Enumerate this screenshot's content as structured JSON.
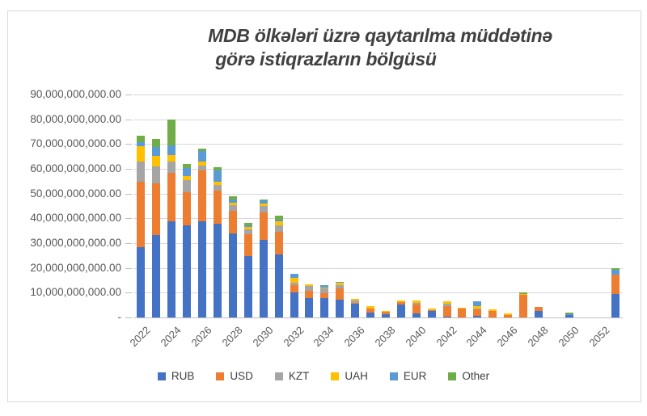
{
  "title": {
    "line1": "MDB ölkələri üzrə qaytarılma müddətinə",
    "line2": "görə istiqrazların bölgüsü"
  },
  "chart_data": {
    "type": "bar",
    "stacked": true,
    "title": "MDB ölkələri üzrə qaytarılma müddətinə görə istiqrazların bölgüsü",
    "unit_note": "y values shown in absolute amounts; series values below are billions (×1,000,000,000)",
    "categories": [
      "2022",
      "2023",
      "2024",
      "2025",
      "2026",
      "2027",
      "2028",
      "2029",
      "2030",
      "2031",
      "2032",
      "2033",
      "2034",
      "2035",
      "2036",
      "2037",
      "2038",
      "2039",
      "2040",
      "2041",
      "2042",
      "2043",
      "2044",
      "2045",
      "2046",
      "2047",
      "2048",
      "2049",
      "2050",
      "2051",
      "2052",
      "2053"
    ],
    "x_axis_tick_labels": [
      "2022",
      "2024",
      "2026",
      "2028",
      "2030",
      "2032",
      "2034",
      "2036",
      "2038",
      "2040",
      "2042",
      "2044",
      "2046",
      "2048",
      "2050",
      "2052"
    ],
    "series": [
      {
        "name": "RUB",
        "color": "#4472C4",
        "values_billions": [
          28.5,
          33.2,
          38.9,
          37.2,
          38.8,
          37.9,
          34.0,
          24.9,
          31.3,
          25.4,
          10.1,
          7.8,
          7.9,
          7.2,
          5.4,
          2.1,
          1.3,
          5.3,
          1.7,
          2.8,
          0.3,
          0,
          0.8,
          0,
          0,
          0,
          2.6,
          0,
          0.9,
          0,
          0,
          9.3
        ]
      },
      {
        "name": "USD",
        "color": "#ED7D31",
        "values_billions": [
          26.2,
          20.8,
          19.6,
          13.4,
          20.7,
          13.2,
          9.1,
          8.8,
          11.2,
          9.1,
          2.8,
          3.1,
          1.9,
          4.7,
          0.6,
          1.5,
          0.9,
          0.8,
          3.6,
          0.3,
          4.4,
          3.5,
          2.5,
          2.6,
          1.1,
          9.0,
          1.7,
          0,
          0,
          0,
          0,
          7.9
        ]
      },
      {
        "name": "KZT",
        "color": "#A5A5A5",
        "values_billions": [
          8.2,
          7.0,
          4.6,
          4.8,
          1.8,
          2.5,
          2.1,
          1.7,
          2.5,
          2.7,
          1.1,
          1.8,
          2.1,
          1.2,
          0.7,
          0,
          0,
          0,
          0.6,
          0,
          1.0,
          0,
          0.4,
          0,
          0,
          0,
          0,
          0,
          0,
          0,
          0.15,
          0
        ]
      },
      {
        "name": "UAH",
        "color": "#FFC000",
        "values_billions": [
          6.1,
          4.3,
          2.4,
          1.8,
          1.6,
          1.3,
          1.1,
          1.0,
          1.0,
          1.7,
          2.1,
          0.8,
          0.1,
          1.1,
          0.8,
          1.1,
          0.4,
          0.9,
          0.8,
          0.5,
          0.9,
          0.5,
          0.9,
          0.6,
          0.7,
          0.5,
          0,
          0,
          0,
          0,
          0,
          0
        ]
      },
      {
        "name": "EUR",
        "color": "#5B9BD5",
        "values_billions": [
          1.7,
          3.4,
          4.1,
          3.0,
          4.3,
          4.3,
          1.3,
          0.8,
          1.4,
          0.5,
          1.5,
          0,
          0.9,
          0.2,
          0,
          0,
          0,
          0,
          0,
          0,
          0,
          0,
          2.0,
          0,
          0,
          0,
          0,
          0,
          0.4,
          0,
          0,
          1.9
        ]
      },
      {
        "name": "Other",
        "color": "#70AD47",
        "values_billions": [
          2.8,
          3.3,
          10.4,
          1.7,
          1.1,
          1.3,
          1.4,
          1.1,
          0.2,
          1.6,
          0,
          0,
          0,
          0,
          0,
          0,
          0,
          0,
          0,
          0,
          0,
          0,
          0,
          0,
          0,
          0.6,
          0,
          0,
          0.5,
          0,
          0,
          0.8
        ]
      }
    ],
    "y_axis": {
      "min": 0,
      "max_billions": 90,
      "tick_step_billions": 10,
      "tick_labels": [
        "-",
        "10,000,000,000.00",
        "20,000,000,000.00",
        "30,000,000,000.00",
        "40,000,000,000.00",
        "50,000,000,000.00",
        "60,000,000,000.00",
        "70,000,000,000.00",
        "80,000,000,000.00",
        "90,000,000,000.00"
      ]
    },
    "grid": "horizontal",
    "legend_position": "bottom"
  },
  "legend": {
    "items": [
      {
        "label": "RUB",
        "color": "#4472C4"
      },
      {
        "label": "USD",
        "color": "#ED7D31"
      },
      {
        "label": "KZT",
        "color": "#A5A5A5"
      },
      {
        "label": "UAH",
        "color": "#FFC000"
      },
      {
        "label": "EUR",
        "color": "#5B9BD5"
      },
      {
        "label": "Other",
        "color": "#70AD47"
      }
    ]
  },
  "colors": {
    "gridline": "#D9D9D9",
    "axis_line": "#BFBFBF",
    "axis_text": "#595959",
    "title_text": "#404040",
    "frame_border": "#D9D9D9",
    "background": "#FFFFFF"
  }
}
